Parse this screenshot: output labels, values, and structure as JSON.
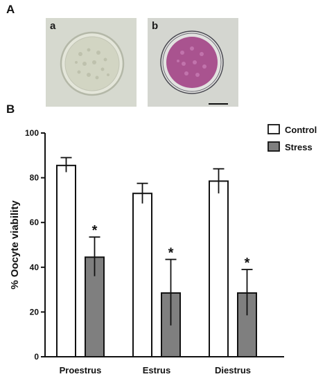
{
  "panels": {
    "a_label": "A",
    "b_label": "B",
    "image_a_label": "a",
    "image_b_label": "b"
  },
  "colors": {
    "control": "#ffffff",
    "stress": "#7f7f7f",
    "axis": "#111111"
  },
  "chart_data": {
    "type": "bar",
    "categories": [
      "Proestrus",
      "Estrus",
      "Diestrus"
    ],
    "ylabel": "% Oocyte viability",
    "ylim": [
      0,
      100
    ],
    "yticks": [
      0,
      20,
      40,
      60,
      80,
      100
    ],
    "legend_position": "top-right",
    "series": [
      {
        "name": "Control",
        "values": [
          85.5,
          73,
          78.5
        ],
        "error_low": [
          82.5,
          68.5,
          73
        ],
        "error_high": [
          89,
          77.5,
          84
        ],
        "significance": [
          "",
          "",
          ""
        ]
      },
      {
        "name": "Stress",
        "values": [
          44.5,
          28.5,
          28.5
        ],
        "error_low": [
          36,
          14,
          18.5
        ],
        "error_high": [
          53.5,
          43.5,
          39
        ],
        "significance": [
          "*",
          "*",
          "*"
        ]
      }
    ]
  }
}
